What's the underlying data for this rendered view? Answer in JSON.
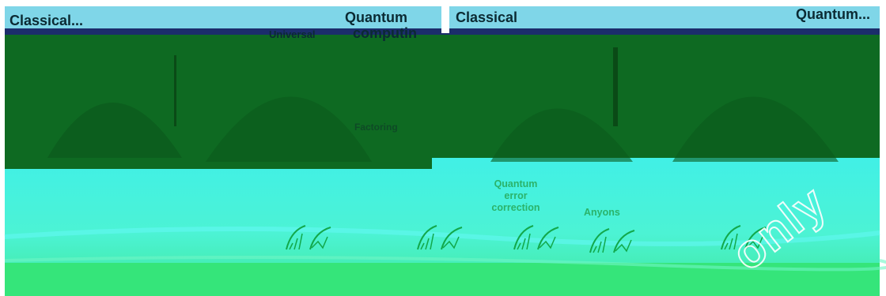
{
  "colors": {
    "band_green": "#0e6a22",
    "sky": "#7fd6e8",
    "cyan": "#41f0e6",
    "floor": "#35e57a",
    "strip": "#1b2d6b",
    "label_green": "#2bb36a"
  },
  "left_panel": {
    "classical": "Classical...",
    "universal": "Universal",
    "quantum": "Quantum",
    "computing": "computin",
    "factoring": "Factoring"
  },
  "right_panel": {
    "classical": "Classical",
    "quantum": "Quantum..."
  },
  "bottom": {
    "qec_line1": "Quantum",
    "qec_line2": "error",
    "qec_line3": "correction",
    "anyons": "Anyons",
    "watermark": "only"
  },
  "icons": [
    "wave-knot-icon",
    "wave-knot-icon",
    "wave-knot-icon",
    "wave-knot-icon",
    "wave-knot-icon"
  ]
}
